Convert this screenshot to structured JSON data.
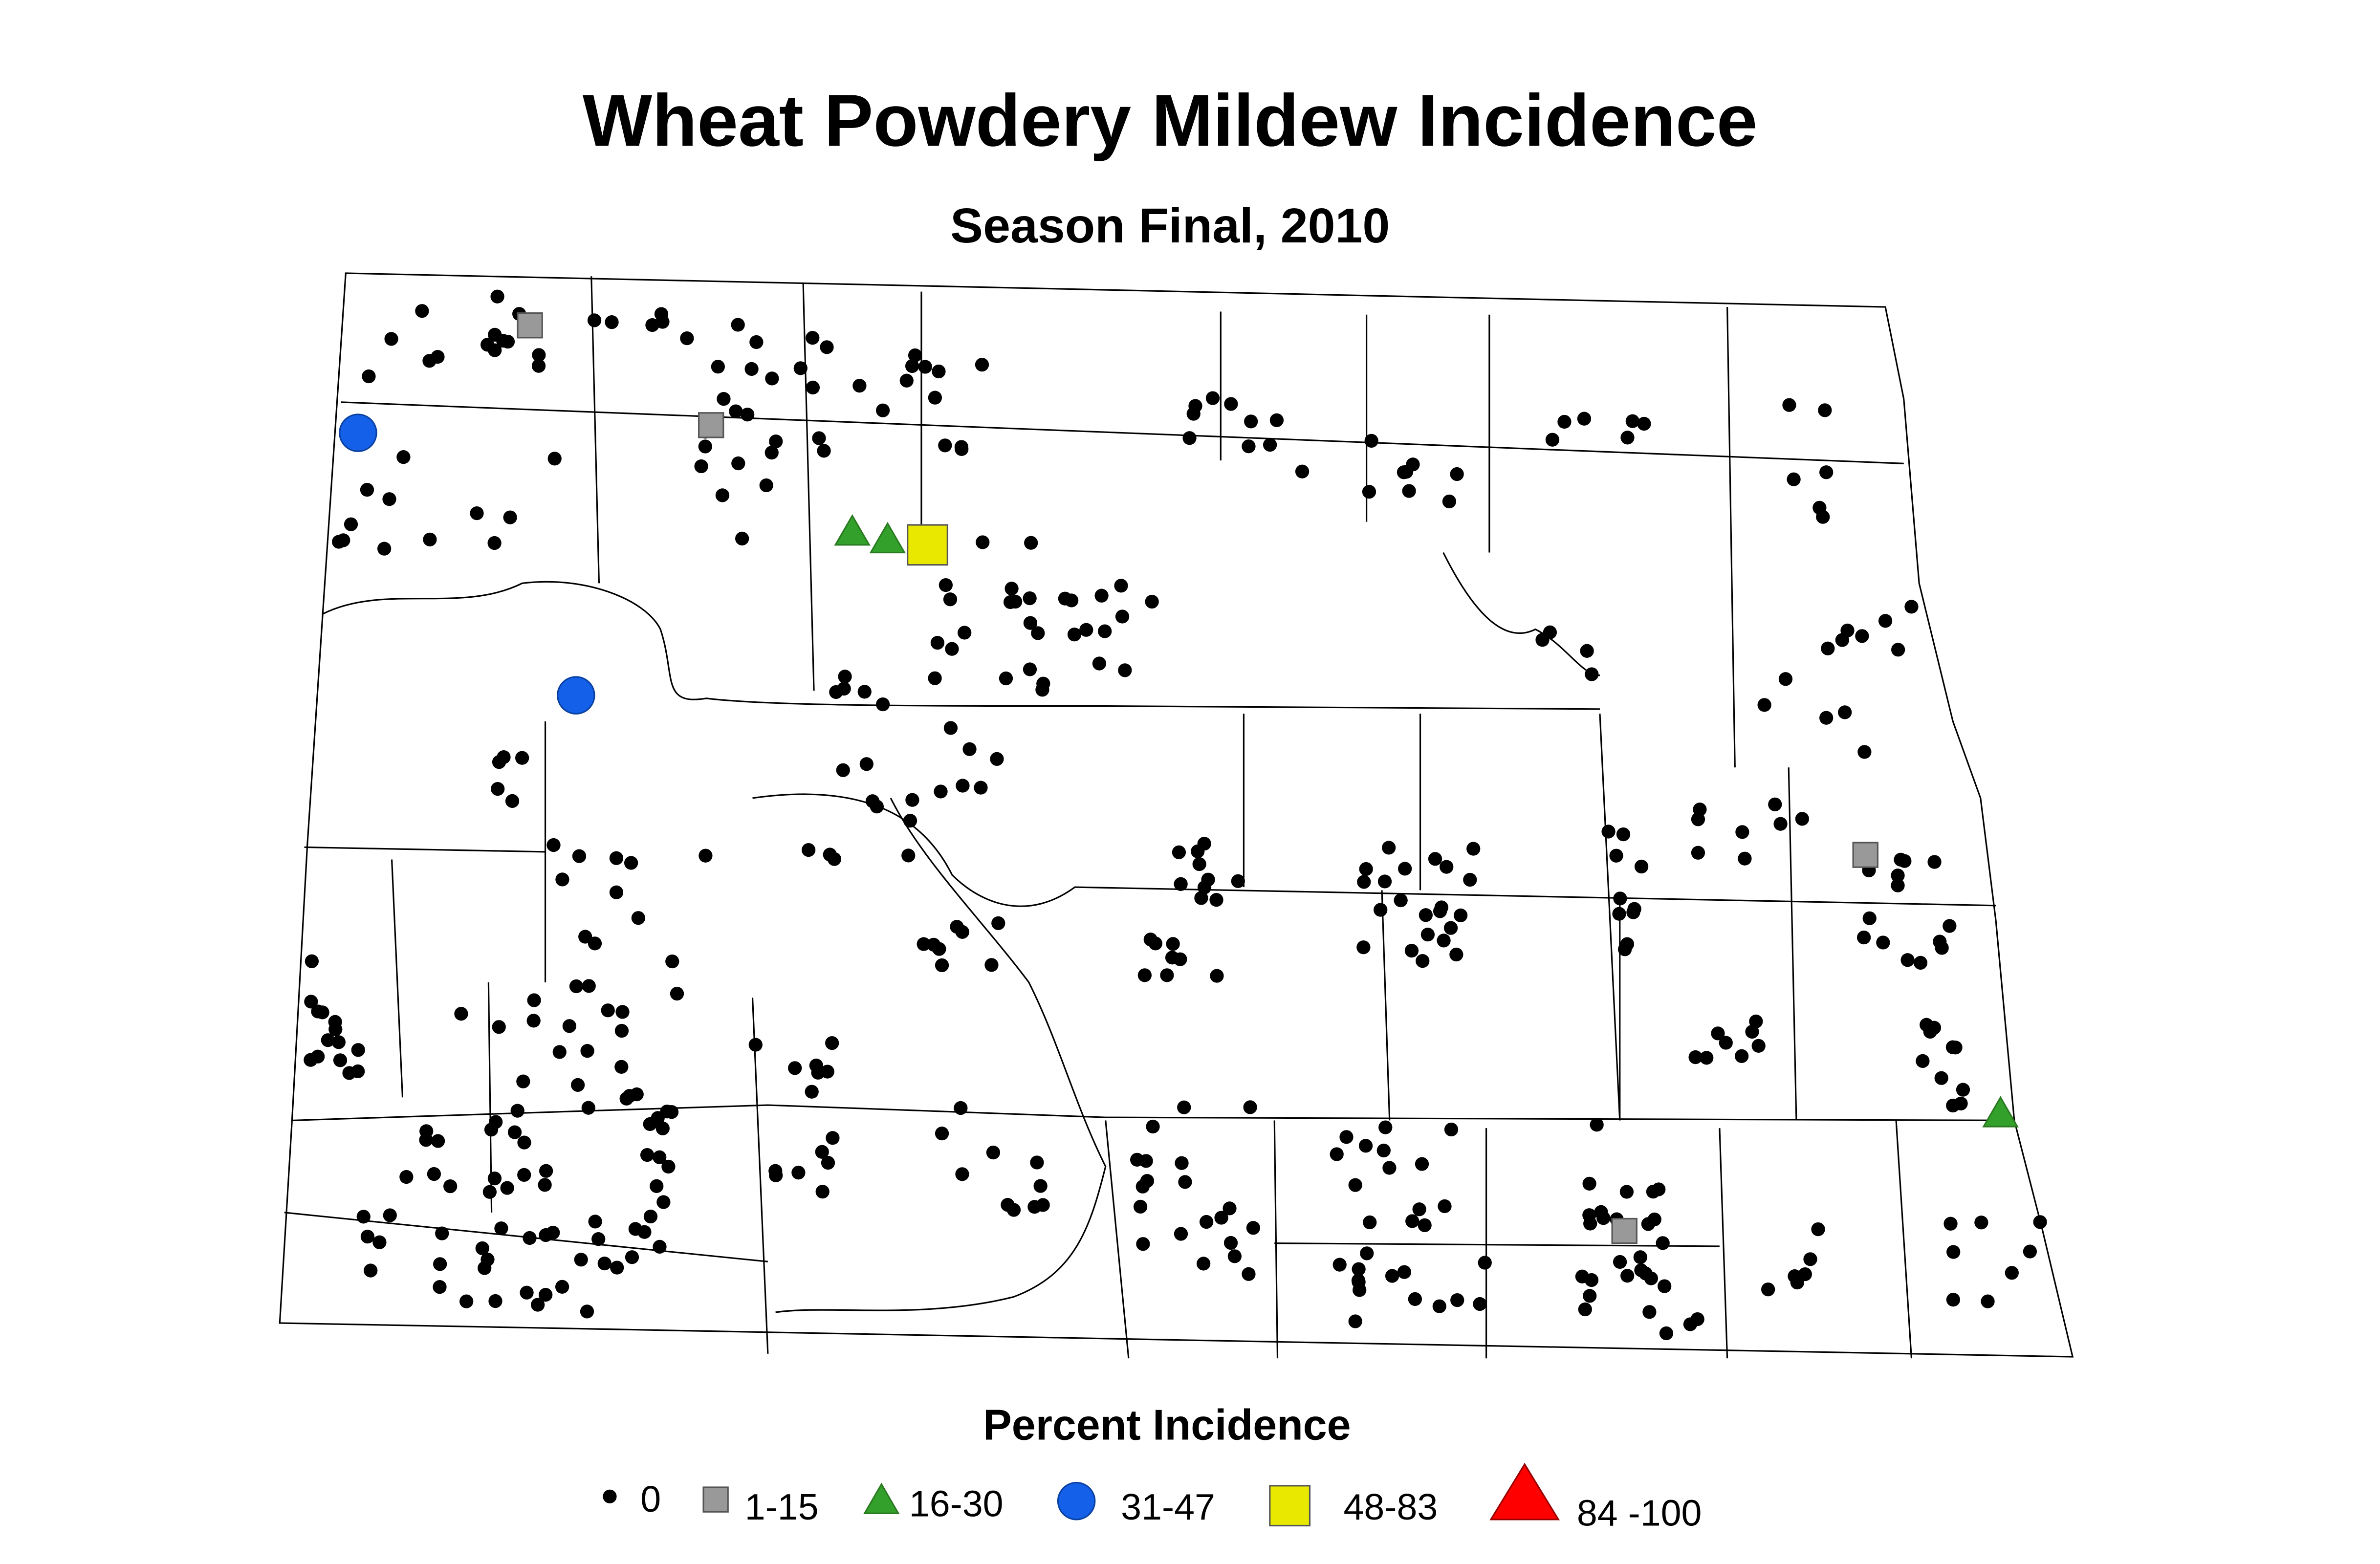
{
  "title": "Wheat Powdery Mildew Incidence",
  "subtitle": "Season Final, 2010",
  "legend": {
    "title": "Percent Incidence",
    "items": [
      {
        "label": "0",
        "shape": "dot",
        "color": "#000000"
      },
      {
        "label": "1-15",
        "shape": "square",
        "color": "#999999"
      },
      {
        "label": "16-30",
        "shape": "triangle",
        "color": "#33a02c"
      },
      {
        "label": "31-47",
        "shape": "circle",
        "color": "#1560e8"
      },
      {
        "label": "48-83",
        "shape": "square-large",
        "color": "#e8e800"
      },
      {
        "label": "84 -100",
        "shape": "triangle-large",
        "color": "#ff0000"
      }
    ]
  }
}
